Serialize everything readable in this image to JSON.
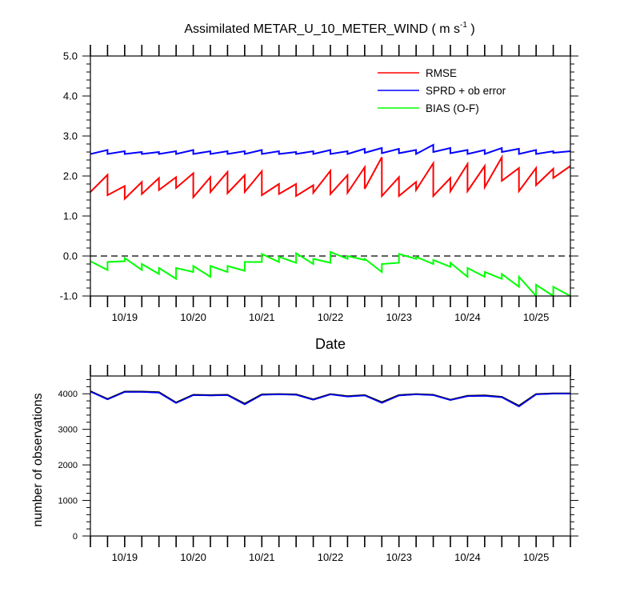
{
  "chart_data": [
    {
      "type": "line",
      "title_main": "Assimilated METAR_U_10_METER_WIND ( m s",
      "title_sup": "-1",
      "title_end": " )",
      "xlabel": "Date",
      "ylabel": "",
      "xlim": [
        0,
        7.0
      ],
      "ylim": [
        -1.0,
        5.0
      ],
      "yticks": [
        "5.0",
        "4.0",
        "3.0",
        "2.0",
        "1.0",
        "0.0",
        "-1.0"
      ],
      "ytick_values": [
        5,
        4,
        3,
        2,
        1,
        0,
        -1
      ],
      "categories": [
        "10/19",
        "10/20",
        "10/21",
        "10/22",
        "10/23",
        "10/24",
        "10/25"
      ],
      "category_positions": [
        0.5,
        1.5,
        2.5,
        3.5,
        4.5,
        5.5,
        6.5
      ],
      "grid": false,
      "legend_position": "top-right",
      "zero_line": 0,
      "series": [
        {
          "name": "RMSE",
          "color": "#ff0000",
          "segments": [
            [
              [
                0.0,
                1.6
              ],
              [
                0.25,
                2.03
              ]
            ],
            [
              [
                0.25,
                1.52
              ],
              [
                0.5,
                1.75
              ]
            ],
            [
              [
                0.5,
                1.43
              ],
              [
                0.75,
                1.85
              ]
            ],
            [
              [
                0.75,
                1.55
              ],
              [
                1.0,
                1.95
              ]
            ],
            [
              [
                1.0,
                1.65
              ],
              [
                1.25,
                1.97
              ]
            ],
            [
              [
                1.25,
                1.7
              ],
              [
                1.5,
                2.07
              ]
            ],
            [
              [
                1.5,
                1.47
              ],
              [
                1.75,
                1.97
              ]
            ],
            [
              [
                1.75,
                1.6
              ],
              [
                2.0,
                2.1
              ]
            ],
            [
              [
                2.0,
                1.57
              ],
              [
                2.25,
                2.02
              ]
            ],
            [
              [
                2.25,
                1.6
              ],
              [
                2.5,
                2.12
              ]
            ],
            [
              [
                2.5,
                1.52
              ],
              [
                2.75,
                1.8
              ]
            ],
            [
              [
                2.75,
                1.55
              ],
              [
                3.0,
                1.8
              ]
            ],
            [
              [
                3.0,
                1.5
              ],
              [
                3.25,
                1.77
              ]
            ],
            [
              [
                3.25,
                1.58
              ],
              [
                3.5,
                2.13
              ]
            ],
            [
              [
                3.5,
                1.55
              ],
              [
                3.75,
                2.02
              ]
            ],
            [
              [
                3.75,
                1.58
              ],
              [
                4.0,
                2.22
              ]
            ],
            [
              [
                4.0,
                1.68
              ],
              [
                4.25,
                2.47
              ]
            ],
            [
              [
                4.25,
                1.5
              ],
              [
                4.5,
                1.97
              ]
            ],
            [
              [
                4.5,
                1.5
              ],
              [
                4.75,
                1.85
              ]
            ],
            [
              [
                4.75,
                1.65
              ],
              [
                5.0,
                2.32
              ]
            ],
            [
              [
                5.0,
                1.5
              ],
              [
                5.25,
                1.95
              ]
            ],
            [
              [
                5.25,
                1.62
              ],
              [
                5.5,
                2.3
              ]
            ],
            [
              [
                5.5,
                1.62
              ],
              [
                5.75,
                2.25
              ]
            ],
            [
              [
                5.75,
                1.72
              ],
              [
                6.0,
                2.47
              ]
            ],
            [
              [
                6.0,
                1.88
              ],
              [
                6.25,
                2.2
              ]
            ],
            [
              [
                6.25,
                1.62
              ],
              [
                6.5,
                2.2
              ]
            ],
            [
              [
                6.5,
                1.77
              ],
              [
                6.75,
                2.18
              ]
            ],
            [
              [
                6.75,
                1.95
              ],
              [
                7.0,
                2.25
              ]
            ]
          ]
        },
        {
          "name": "SPRD + ob error",
          "color": "#0000ff",
          "segments": [
            [
              [
                0.0,
                2.55
              ],
              [
                0.25,
                2.65
              ]
            ],
            [
              [
                0.25,
                2.55
              ],
              [
                0.5,
                2.62
              ]
            ],
            [
              [
                0.5,
                2.55
              ],
              [
                0.75,
                2.6
              ]
            ],
            [
              [
                0.75,
                2.55
              ],
              [
                1.0,
                2.6
              ]
            ],
            [
              [
                1.0,
                2.55
              ],
              [
                1.25,
                2.62
              ]
            ],
            [
              [
                1.25,
                2.55
              ],
              [
                1.5,
                2.65
              ]
            ],
            [
              [
                1.5,
                2.55
              ],
              [
                1.75,
                2.62
              ]
            ],
            [
              [
                1.75,
                2.55
              ],
              [
                2.0,
                2.62
              ]
            ],
            [
              [
                2.0,
                2.55
              ],
              [
                2.25,
                2.62
              ]
            ],
            [
              [
                2.25,
                2.55
              ],
              [
                2.5,
                2.65
              ]
            ],
            [
              [
                2.5,
                2.55
              ],
              [
                2.75,
                2.62
              ]
            ],
            [
              [
                2.75,
                2.55
              ],
              [
                3.0,
                2.6
              ]
            ],
            [
              [
                3.0,
                2.55
              ],
              [
                3.25,
                2.62
              ]
            ],
            [
              [
                3.25,
                2.55
              ],
              [
                3.5,
                2.65
              ]
            ],
            [
              [
                3.5,
                2.55
              ],
              [
                3.75,
                2.62
              ]
            ],
            [
              [
                3.75,
                2.55
              ],
              [
                4.0,
                2.68
              ]
            ],
            [
              [
                4.0,
                2.58
              ],
              [
                4.25,
                2.7
              ]
            ],
            [
              [
                4.25,
                2.57
              ],
              [
                4.5,
                2.68
              ]
            ],
            [
              [
                4.5,
                2.57
              ],
              [
                4.75,
                2.65
              ]
            ],
            [
              [
                4.75,
                2.55
              ],
              [
                5.0,
                2.78
              ]
            ],
            [
              [
                5.0,
                2.6
              ],
              [
                5.25,
                2.7
              ]
            ],
            [
              [
                5.25,
                2.57
              ],
              [
                5.5,
                2.65
              ]
            ],
            [
              [
                5.5,
                2.55
              ],
              [
                5.75,
                2.65
              ]
            ],
            [
              [
                5.75,
                2.55
              ],
              [
                6.0,
                2.7
              ]
            ],
            [
              [
                6.0,
                2.6
              ],
              [
                6.25,
                2.68
              ]
            ],
            [
              [
                6.25,
                2.55
              ],
              [
                6.5,
                2.65
              ]
            ],
            [
              [
                6.5,
                2.55
              ],
              [
                6.75,
                2.62
              ]
            ],
            [
              [
                6.75,
                2.58
              ],
              [
                7.0,
                2.62
              ]
            ]
          ]
        },
        {
          "name": "BIAS (O-F)",
          "color": "#00ff00",
          "segments": [
            [
              [
                0.0,
                -0.13
              ],
              [
                0.25,
                -0.35
              ]
            ],
            [
              [
                0.25,
                -0.15
              ],
              [
                0.5,
                -0.13
              ]
            ],
            [
              [
                0.5,
                -0.05
              ],
              [
                0.75,
                -0.35
              ]
            ],
            [
              [
                0.75,
                -0.2
              ],
              [
                1.0,
                -0.45
              ]
            ],
            [
              [
                1.0,
                -0.3
              ],
              [
                1.25,
                -0.57
              ]
            ],
            [
              [
                1.25,
                -0.3
              ],
              [
                1.5,
                -0.4
              ]
            ],
            [
              [
                1.5,
                -0.25
              ],
              [
                1.75,
                -0.52
              ]
            ],
            [
              [
                1.75,
                -0.25
              ],
              [
                2.0,
                -0.4
              ]
            ],
            [
              [
                2.0,
                -0.25
              ],
              [
                2.25,
                -0.37
              ]
            ],
            [
              [
                2.25,
                -0.15
              ],
              [
                2.5,
                -0.15
              ]
            ],
            [
              [
                2.5,
                0.05
              ],
              [
                2.75,
                -0.15
              ]
            ],
            [
              [
                2.75,
                -0.02
              ],
              [
                3.0,
                -0.17
              ]
            ],
            [
              [
                3.0,
                0.07
              ],
              [
                3.25,
                -0.2
              ]
            ],
            [
              [
                3.25,
                -0.07
              ],
              [
                3.5,
                -0.17
              ]
            ],
            [
              [
                3.5,
                0.1
              ],
              [
                3.75,
                -0.07
              ]
            ],
            [
              [
                3.75,
                0.0
              ],
              [
                4.0,
                -0.1
              ]
            ],
            [
              [
                4.0,
                -0.07
              ],
              [
                4.25,
                -0.4
              ]
            ],
            [
              [
                4.25,
                -0.2
              ],
              [
                4.5,
                -0.17
              ]
            ],
            [
              [
                4.5,
                0.05
              ],
              [
                4.75,
                -0.07
              ]
            ],
            [
              [
                4.75,
                -0.02
              ],
              [
                5.0,
                -0.2
              ]
            ],
            [
              [
                5.0,
                -0.1
              ],
              [
                5.25,
                -0.27
              ]
            ],
            [
              [
                5.25,
                -0.17
              ],
              [
                5.5,
                -0.52
              ]
            ],
            [
              [
                5.5,
                -0.3
              ],
              [
                5.75,
                -0.52
              ]
            ],
            [
              [
                5.75,
                -0.4
              ],
              [
                6.0,
                -0.57
              ]
            ],
            [
              [
                6.0,
                -0.45
              ],
              [
                6.25,
                -0.77
              ]
            ],
            [
              [
                6.25,
                -0.52
              ],
              [
                6.5,
                -1.0
              ]
            ],
            [
              [
                6.5,
                -0.72
              ],
              [
                6.75,
                -1.0
              ]
            ],
            [
              [
                6.75,
                -0.77
              ],
              [
                7.0,
                -1.0
              ]
            ]
          ]
        }
      ]
    },
    {
      "type": "line",
      "title_main": "",
      "xlabel": "",
      "ylabel": "number of observations",
      "xlim": [
        0,
        7.0
      ],
      "ylim": [
        0,
        4500
      ],
      "yticks": [
        "4000",
        "3000",
        "2000",
        "1000",
        "0"
      ],
      "ytick_values": [
        4000,
        3000,
        2000,
        1000,
        0
      ],
      "categories": [
        "10/19",
        "10/20",
        "10/21",
        "10/22",
        "10/23",
        "10/24",
        "10/25"
      ],
      "category_positions": [
        0.5,
        1.5,
        2.5,
        3.5,
        4.5,
        5.5,
        6.5
      ],
      "grid": false,
      "series": [
        {
          "name": "",
          "color": "#000000",
          "x": [
            0.0,
            0.25,
            0.5,
            0.75,
            1.0,
            1.25,
            1.5,
            1.75,
            2.0,
            2.25,
            2.5,
            2.75,
            3.0,
            3.25,
            3.5,
            3.75,
            4.0,
            4.25,
            4.5,
            4.75,
            5.0,
            5.25,
            5.5,
            5.75,
            6.0,
            6.25,
            6.5,
            6.75,
            7.0
          ],
          "values": [
            4070,
            3850,
            4060,
            4060,
            4040,
            3750,
            3970,
            3960,
            3970,
            3720,
            3980,
            3990,
            3980,
            3840,
            3990,
            3930,
            3960,
            3760,
            3960,
            3990,
            3970,
            3830,
            3940,
            3950,
            3910,
            3660,
            3990,
            4010,
            4010
          ]
        },
        {
          "name": "",
          "color": "#0000ff",
          "x": [
            0.0,
            0.25,
            0.5,
            0.75,
            1.0,
            1.25,
            1.5,
            1.75,
            2.0,
            2.25,
            2.5,
            2.75,
            3.0,
            3.25,
            3.5,
            3.75,
            4.0,
            4.25,
            4.5,
            4.75,
            5.0,
            5.25,
            5.5,
            5.75,
            6.0,
            6.25,
            6.5,
            6.75,
            7.0
          ],
          "values": [
            4060,
            3840,
            4050,
            4050,
            4030,
            3740,
            3960,
            3950,
            3960,
            3700,
            3970,
            3980,
            3970,
            3830,
            3980,
            3920,
            3950,
            3740,
            3950,
            3980,
            3960,
            3820,
            3930,
            3940,
            3900,
            3640,
            3980,
            4000,
            4000
          ]
        }
      ]
    }
  ]
}
